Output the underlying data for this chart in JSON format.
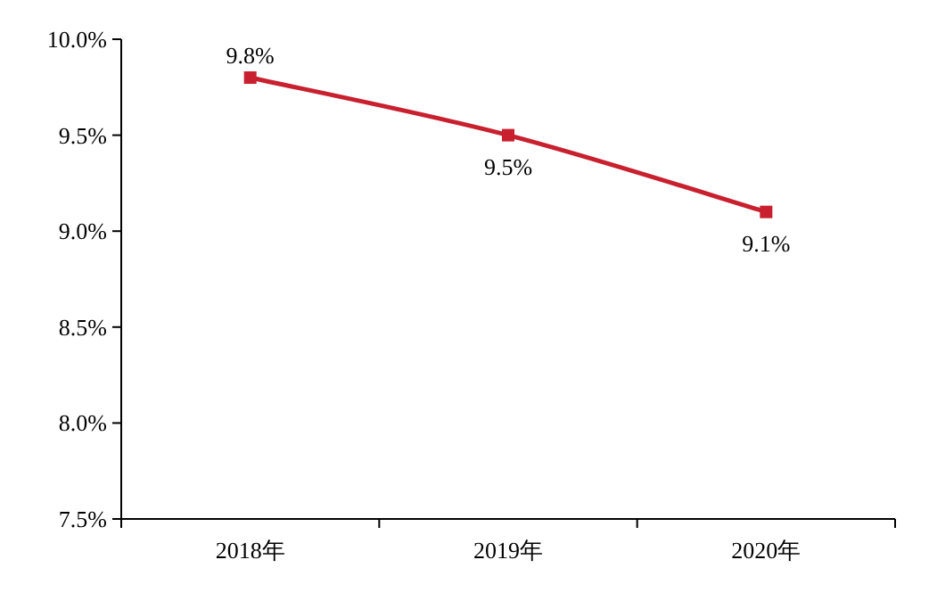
{
  "chart_data": {
    "type": "line",
    "categories": [
      "2018年",
      "2019年",
      "2020年"
    ],
    "series": [
      {
        "color": "#c8202f",
        "values": [
          9.8,
          9.5,
          9.1
        ],
        "value_labels": [
          "9.8%",
          "9.5%",
          "9.1%"
        ]
      }
    ],
    "ylim": [
      7.5,
      10.0
    ],
    "yticks": [
      {
        "value": 7.5,
        "label": "7.5%"
      },
      {
        "value": 8.0,
        "label": "8.0%"
      },
      {
        "value": 8.5,
        "label": "8.5%"
      },
      {
        "value": 9.0,
        "label": "9.0%"
      },
      {
        "value": 9.5,
        "label": "9.5%"
      },
      {
        "value": 10.0,
        "label": "10.0%"
      }
    ],
    "marker": "square",
    "line_style": "solid",
    "grid": false
  }
}
